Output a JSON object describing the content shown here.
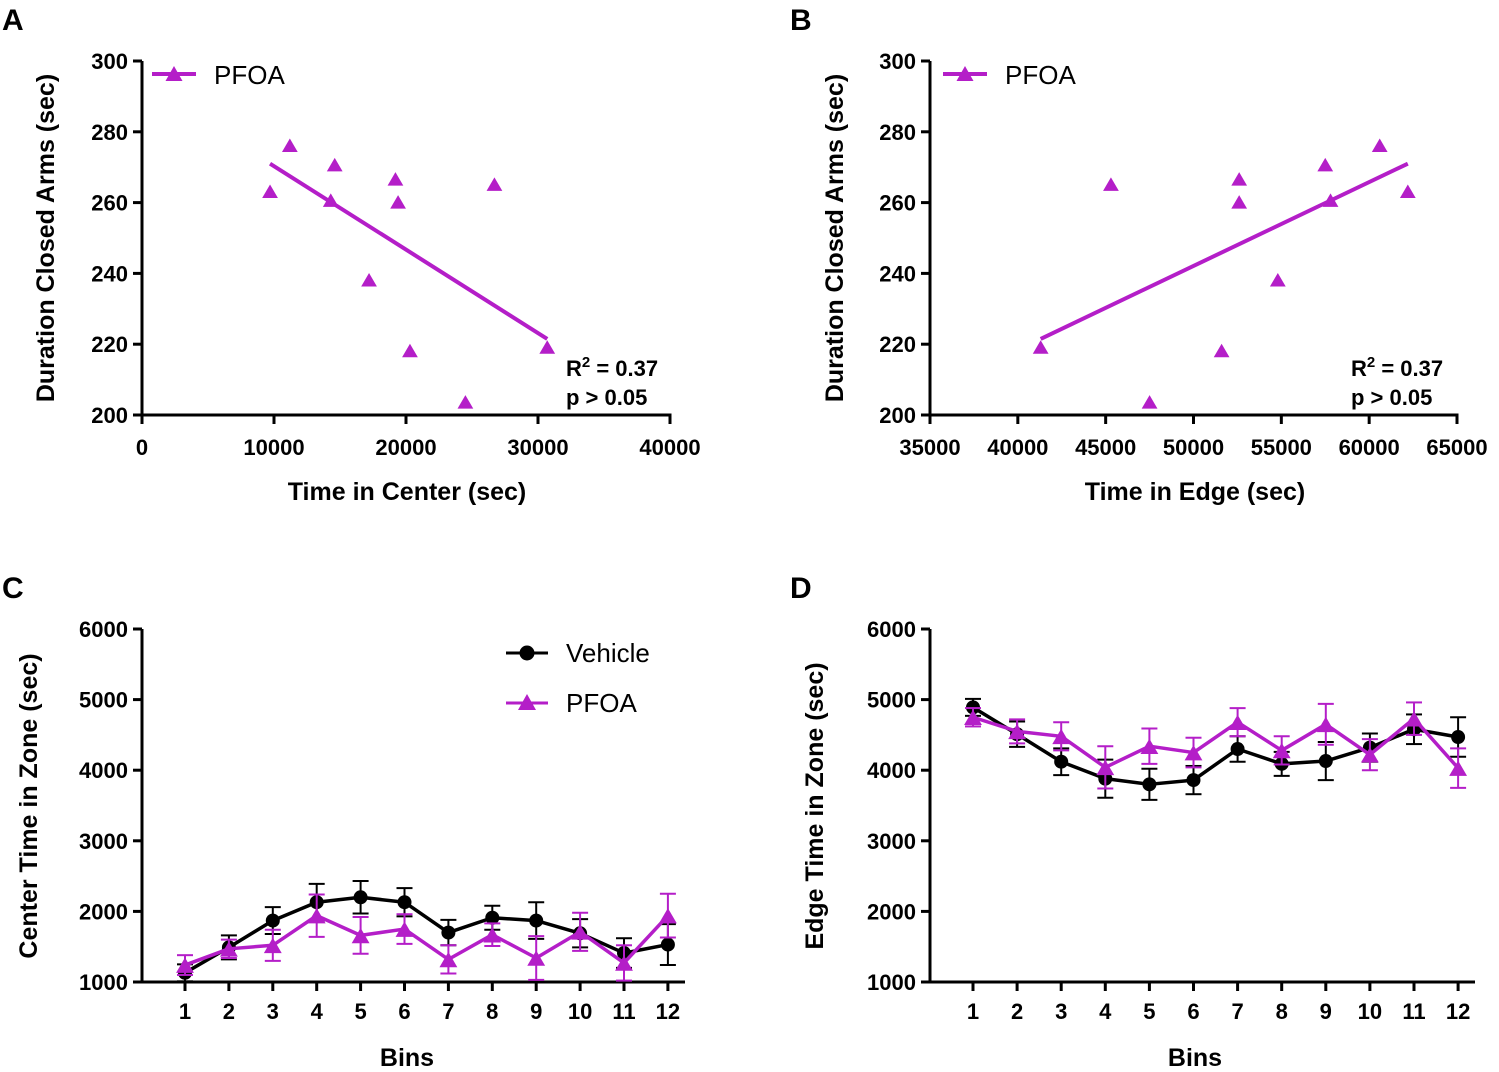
{
  "colors": {
    "pfoa": "#b41ec8",
    "vehicle": "#000000",
    "axis": "#000000"
  },
  "chart_data": [
    {
      "panel": "A",
      "type": "scatter",
      "xlabel": "Time in Center (sec)",
      "ylabel": "Duration Closed Arms (sec)",
      "xlim": [
        0,
        40000
      ],
      "ylim": [
        200,
        300
      ],
      "xticks": [
        0,
        10000,
        20000,
        30000,
        40000
      ],
      "yticks": [
        200,
        220,
        240,
        260,
        280,
        300
      ],
      "xtick_labels": [
        "0",
        "10000",
        "20000",
        "30000",
        "40000"
      ],
      "ytick_labels": [
        "200",
        "220",
        "240",
        "260",
        "280",
        "300"
      ],
      "legend": "top-left",
      "series": [
        {
          "name": "PFOA",
          "marker": "triangle",
          "points": [
            [
              9700,
              263
            ],
            [
              11200,
              276
            ],
            [
              14300,
              260.5
            ],
            [
              14600,
              270.5
            ],
            [
              17200,
              238
            ],
            [
              19200,
              266.5
            ],
            [
              19400,
              260
            ],
            [
              20300,
              218
            ],
            [
              24500,
              203.5
            ],
            [
              26700,
              265
            ],
            [
              30700,
              219
            ]
          ],
          "fit": [
            [
              9700,
              271
            ],
            [
              30700,
              221.5
            ]
          ]
        }
      ],
      "annotation": {
        "r2_prefix": "R",
        "r2_sup": "2",
        "r2_suffix": " = 0.37",
        "p": "p > 0.05"
      }
    },
    {
      "panel": "B",
      "type": "scatter",
      "xlabel": "Time in Edge (sec)",
      "ylabel": "Duration Closed Arms (sec)",
      "xlim": [
        35000,
        65000
      ],
      "ylim": [
        200,
        300
      ],
      "xticks": [
        35000,
        40000,
        45000,
        50000,
        55000,
        60000,
        65000
      ],
      "yticks": [
        200,
        220,
        240,
        260,
        280,
        300
      ],
      "xtick_labels": [
        "35000",
        "40000",
        "45000",
        "50000",
        "55000",
        "60000",
        "65000"
      ],
      "ytick_labels": [
        "200",
        "220",
        "240",
        "260",
        "280",
        "300"
      ],
      "legend": "top-left",
      "series": [
        {
          "name": "PFOA",
          "marker": "triangle",
          "points": [
            [
              41300,
              219
            ],
            [
              45300,
              265
            ],
            [
              47500,
              203.5
            ],
            [
              51600,
              218
            ],
            [
              52600,
              266.5
            ],
            [
              52600,
              260
            ],
            [
              54800,
              238
            ],
            [
              57500,
              270.5
            ],
            [
              57800,
              260.5
            ],
            [
              60600,
              276
            ],
            [
              62200,
              263
            ]
          ],
          "fit": [
            [
              41300,
              221.5
            ],
            [
              62200,
              271
            ]
          ]
        }
      ],
      "annotation": {
        "r2_prefix": "R",
        "r2_sup": "2",
        "r2_suffix": " = 0.37",
        "p": "p > 0.05"
      }
    },
    {
      "panel": "C",
      "type": "line",
      "xlabel": "Bins",
      "ylabel": "Center Time in Zone (sec)",
      "categories": [
        "1",
        "2",
        "3",
        "4",
        "5",
        "6",
        "7",
        "8",
        "9",
        "10",
        "11",
        "12"
      ],
      "ylim": [
        1000,
        6000
      ],
      "yticks": [
        1000,
        2000,
        3000,
        4000,
        5000,
        6000
      ],
      "ytick_labels": [
        "1000",
        "2000",
        "3000",
        "4000",
        "5000",
        "6000"
      ],
      "legend": "top-right",
      "series": [
        {
          "name": "Vehicle",
          "marker": "circle",
          "values": [
            1130,
            1490,
            1870,
            2130,
            2200,
            2130,
            1700,
            1910,
            1870,
            1690,
            1410,
            1530
          ],
          "errors": [
            120,
            170,
            190,
            260,
            230,
            200,
            180,
            170,
            260,
            200,
            210,
            290
          ]
        },
        {
          "name": "PFOA",
          "marker": "triangle",
          "values": [
            1240,
            1470,
            1520,
            1940,
            1660,
            1750,
            1320,
            1670,
            1340,
            1710,
            1270,
            1940
          ],
          "errors": [
            140,
            130,
            220,
            300,
            260,
            210,
            200,
            160,
            310,
            270,
            250,
            310
          ]
        }
      ]
    },
    {
      "panel": "D",
      "type": "line",
      "xlabel": "Bins",
      "ylabel": "Edge Time in Zone (sec)",
      "categories": [
        "1",
        "2",
        "3",
        "4",
        "5",
        "6",
        "7",
        "8",
        "9",
        "10",
        "11",
        "12"
      ],
      "ylim": [
        1000,
        6000
      ],
      "yticks": [
        1000,
        2000,
        3000,
        4000,
        5000,
        6000
      ],
      "ytick_labels": [
        "1000",
        "2000",
        "3000",
        "4000",
        "5000",
        "6000"
      ],
      "legend": "none",
      "series": [
        {
          "name": "Vehicle",
          "marker": "circle",
          "values": [
            4890,
            4510,
            4120,
            3880,
            3800,
            3860,
            4300,
            4090,
            4130,
            4320,
            4580,
            4470
          ],
          "errors": [
            120,
            180,
            190,
            270,
            220,
            200,
            180,
            170,
            270,
            200,
            210,
            280
          ]
        },
        {
          "name": "PFOA",
          "marker": "triangle",
          "values": [
            4750,
            4550,
            4480,
            4040,
            4340,
            4250,
            4680,
            4280,
            4650,
            4220,
            4730,
            4030
          ],
          "errors": [
            130,
            170,
            200,
            300,
            250,
            210,
            200,
            200,
            290,
            220,
            230,
            280
          ]
        }
      ]
    }
  ]
}
